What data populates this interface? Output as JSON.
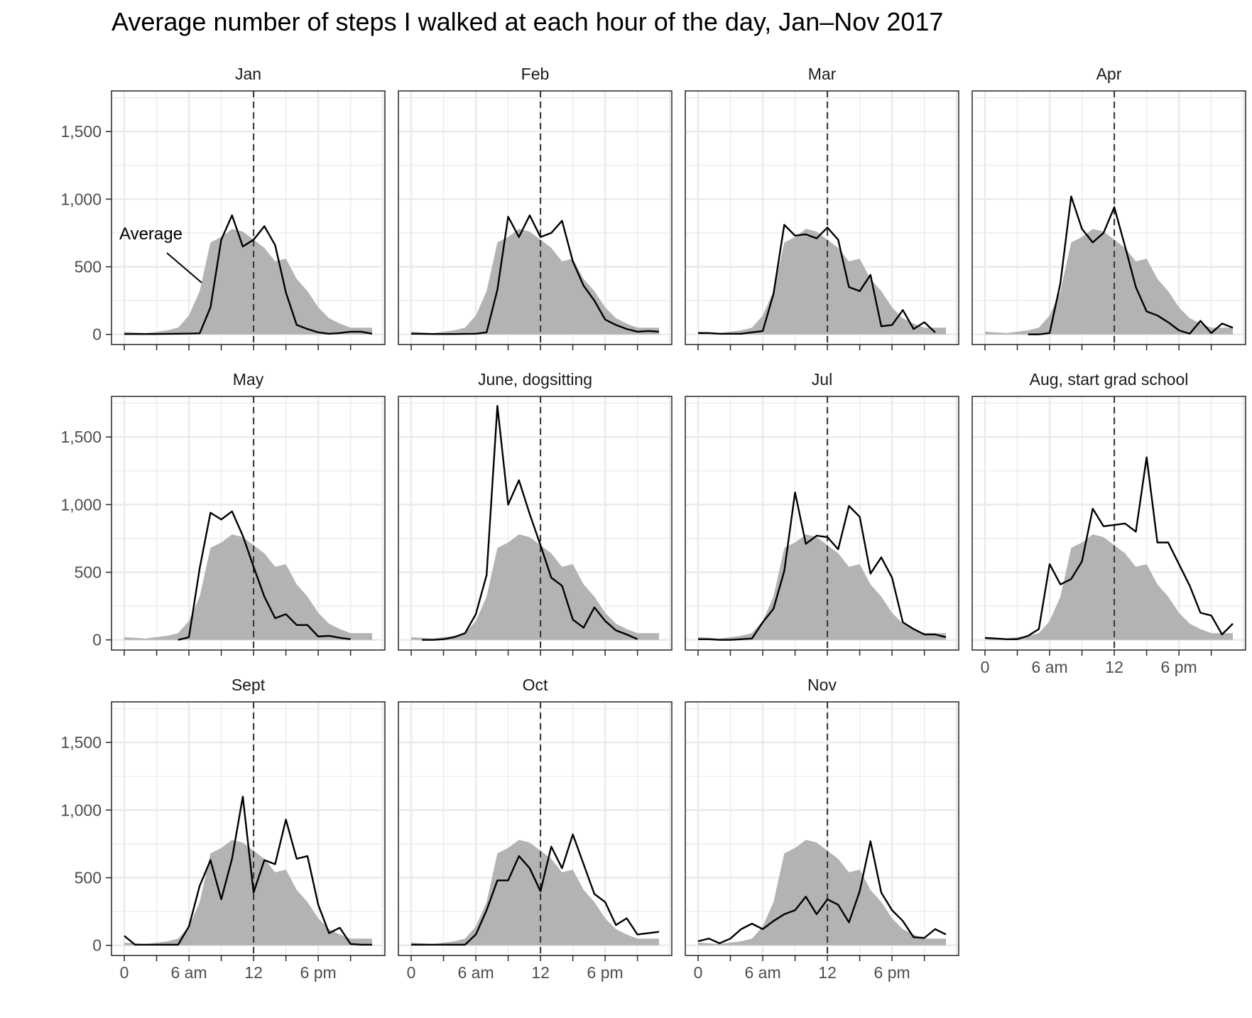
{
  "chart_data": {
    "type": "line",
    "title": "Average number of steps I walked at each hour of the day, Jan–Nov 2017",
    "xlabel": "",
    "ylabel": "",
    "xlim": [
      0,
      23
    ],
    "ylim": [
      0,
      1800
    ],
    "x_ticks": [
      0,
      6,
      12,
      18
    ],
    "x_tick_labels": [
      "0",
      "6 am",
      "12",
      "6 pm"
    ],
    "y_ticks": [
      0,
      500,
      1000,
      1500
    ],
    "y_tick_labels": [
      "0",
      "500",
      "1,000",
      "1,500"
    ],
    "reference_line": {
      "x": 12,
      "style": "dashed"
    },
    "grid": true,
    "legend": "none",
    "annotation": {
      "text": "Average",
      "panel": "Jan"
    },
    "hours": [
      0,
      1,
      2,
      3,
      4,
      5,
      6,
      7,
      8,
      9,
      10,
      11,
      12,
      13,
      14,
      15,
      16,
      17,
      18,
      19,
      20,
      21,
      22,
      23
    ],
    "average": [
      20,
      15,
      10,
      20,
      30,
      50,
      140,
      320,
      680,
      720,
      780,
      760,
      700,
      640,
      540,
      560,
      410,
      320,
      200,
      120,
      80,
      50,
      50,
      50
    ],
    "colors": {
      "average_fill": "#b3b3b3",
      "line": "#000000",
      "reference": "#333333"
    },
    "panels": [
      {
        "label": "Jan",
        "values": [
          3,
          3,
          3,
          3,
          4,
          5,
          6,
          8,
          200,
          700,
          880,
          650,
          700,
          800,
          660,
          310,
          70,
          40,
          15,
          5,
          10,
          20,
          20,
          5
        ]
      },
      {
        "label": "Feb",
        "values": [
          5,
          4,
          3,
          3,
          3,
          4,
          5,
          15,
          330,
          870,
          720,
          880,
          720,
          750,
          840,
          540,
          360,
          250,
          110,
          70,
          40,
          20,
          25,
          20
        ]
      },
      {
        "label": "Mar",
        "values": [
          10,
          10,
          5,
          5,
          5,
          15,
          25,
          300,
          810,
          730,
          740,
          710,
          790,
          700,
          350,
          320,
          440,
          60,
          70,
          180,
          40,
          90,
          15,
          null
        ]
      },
      {
        "label": "Apr",
        "values": [
          null,
          null,
          null,
          null,
          0,
          0,
          10,
          380,
          1020,
          780,
          680,
          750,
          940,
          650,
          350,
          170,
          140,
          90,
          30,
          5,
          100,
          10,
          80,
          50
        ]
      },
      {
        "label": "May",
        "values": [
          null,
          null,
          null,
          null,
          null,
          0,
          20,
          530,
          940,
          890,
          950,
          770,
          540,
          320,
          160,
          190,
          110,
          110,
          25,
          30,
          15,
          5,
          null,
          null
        ]
      },
      {
        "label": "June, dogsitting",
        "values": [
          null,
          0,
          0,
          5,
          20,
          50,
          190,
          480,
          1730,
          1000,
          1180,
          930,
          700,
          460,
          400,
          150,
          90,
          240,
          140,
          70,
          40,
          5,
          null,
          null
        ]
      },
      {
        "label": "Jul",
        "values": [
          5,
          5,
          0,
          0,
          5,
          10,
          130,
          230,
          510,
          1090,
          710,
          770,
          760,
          670,
          990,
          910,
          490,
          610,
          460,
          130,
          80,
          40,
          40,
          20
        ]
      },
      {
        "label": "Aug, start grad school",
        "values": [
          15,
          10,
          5,
          5,
          30,
          80,
          560,
          410,
          450,
          580,
          970,
          840,
          850,
          860,
          800,
          1350,
          720,
          720,
          560,
          400,
          200,
          180,
          40,
          120
        ]
      },
      {
        "label": "Sept",
        "values": [
          70,
          5,
          5,
          5,
          5,
          5,
          140,
          440,
          630,
          340,
          640,
          1100,
          390,
          630,
          600,
          930,
          640,
          660,
          300,
          90,
          130,
          10,
          5,
          5
        ]
      },
      {
        "label": "Oct",
        "values": [
          5,
          5,
          5,
          5,
          5,
          5,
          80,
          260,
          480,
          480,
          660,
          570,
          400,
          730,
          570,
          820,
          600,
          380,
          320,
          150,
          200,
          80,
          90,
          100
        ]
      },
      {
        "label": "Nov",
        "values": [
          30,
          50,
          15,
          50,
          120,
          160,
          120,
          180,
          230,
          260,
          360,
          230,
          340,
          300,
          170,
          400,
          770,
          390,
          260,
          180,
          60,
          55,
          120,
          80
        ]
      }
    ]
  }
}
